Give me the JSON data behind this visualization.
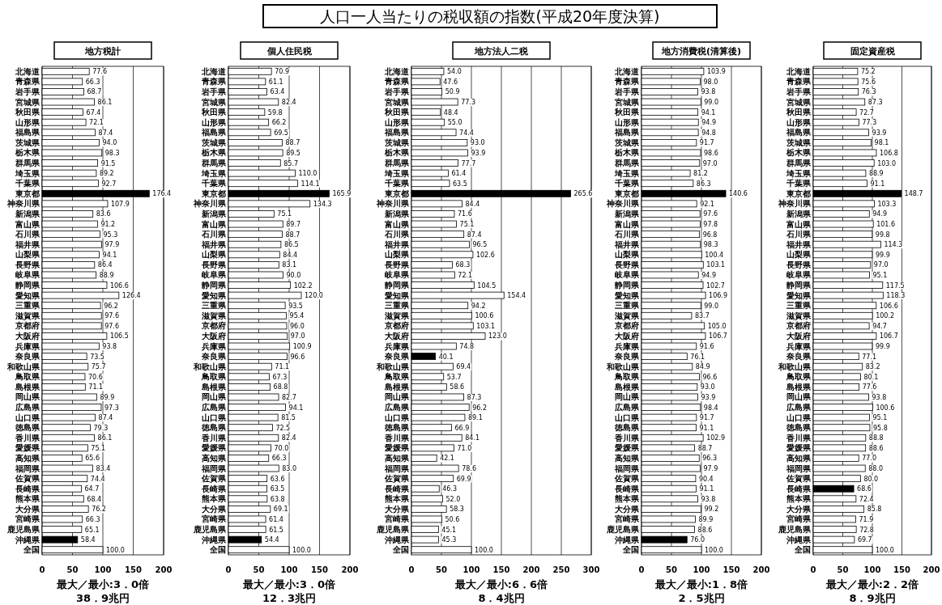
{
  "chart_data": [
    {
      "type": "other",
      "title": "人口一人当たりの税収額の指数(平成20年度決算)"
    },
    {
      "type": "bar",
      "orientation": "horizontal",
      "title": "地方税計",
      "grid": "x",
      "xlim": [
        0,
        200
      ],
      "xticks": [
        0,
        50,
        100,
        150,
        200
      ],
      "categories": [
        "北海道",
        "青森県",
        "岩手県",
        "宮城県",
        "秋田県",
        "山形県",
        "福島県",
        "茨城県",
        "栃木県",
        "群馬県",
        "埼玉県",
        "千葉県",
        "東京都",
        "神奈川県",
        "新潟県",
        "富山県",
        "石川県",
        "福井県",
        "山梨県",
        "長野県",
        "岐阜県",
        "静岡県",
        "愛知県",
        "三重県",
        "滋賀県",
        "京都府",
        "大阪府",
        "兵庫県",
        "奈良県",
        "和歌山県",
        "鳥取県",
        "島根県",
        "岡山県",
        "広島県",
        "山口県",
        "徳島県",
        "香川県",
        "愛媛県",
        "高知県",
        "福岡県",
        "佐賀県",
        "長崎県",
        "熊本県",
        "大分県",
        "宮崎県",
        "鹿児島県",
        "沖縄県",
        "全国"
      ],
      "values": [
        77.6,
        66.3,
        68.7,
        86.1,
        67.4,
        72.1,
        87.4,
        94.0,
        98.3,
        91.5,
        89.2,
        92.7,
        176.4,
        107.9,
        83.6,
        91.2,
        95.3,
        97.9,
        94.1,
        86.4,
        88.9,
        106.6,
        126.4,
        96.2,
        97.6,
        97.6,
        106.5,
        93.8,
        73.5,
        75.7,
        70.6,
        71.1,
        89.9,
        97.3,
        87.4,
        79.3,
        86.1,
        75.1,
        65.6,
        83.4,
        74.4,
        64.7,
        68.4,
        76.2,
        66.3,
        65.1,
        58.4,
        100.0
      ],
      "colors": [
        "#ffffff",
        "#ffffff",
        "#ffffff",
        "#ffffff",
        "#ffffff",
        "#ffffff",
        "#ffffff",
        "#ffffff",
        "#ffffff",
        "#ffffff",
        "#ffffff",
        "#ffffff",
        "#000000",
        "#ffffff",
        "#ffffff",
        "#ffffff",
        "#ffffff",
        "#ffffff",
        "#ffffff",
        "#ffffff",
        "#ffffff",
        "#ffffff",
        "#ffffff",
        "#ffffff",
        "#ffffff",
        "#ffffff",
        "#ffffff",
        "#ffffff",
        "#ffffff",
        "#ffffff",
        "#ffffff",
        "#ffffff",
        "#ffffff",
        "#ffffff",
        "#ffffff",
        "#ffffff",
        "#ffffff",
        "#ffffff",
        "#ffffff",
        "#ffffff",
        "#ffffff",
        "#ffffff",
        "#ffffff",
        "#ffffff",
        "#ffffff",
        "#ffffff",
        "#000000",
        "#ffffff"
      ],
      "value_labels": [
        "77.6",
        "66.3",
        "68.7",
        "86.1",
        "67.4",
        "72.1",
        "87.4",
        "94.0",
        "98.3",
        "91.5",
        "89.2",
        "92.7",
        "176.4",
        "107.9",
        "83.6",
        "91.2",
        "95.3",
        "97.9",
        "94.1",
        "86.4",
        "88.9",
        "106.6",
        "126.4",
        "96.2",
        "97.6",
        "97.6",
        "106.5",
        "93.8",
        "73.5",
        "75.7",
        "70.6",
        "71.1",
        "89.9",
        "97.3",
        "87.4",
        "79.3",
        "86.1",
        "75.1",
        "65.6",
        "83.4",
        "74.4",
        "64.7",
        "68.4",
        "76.2",
        "66.3",
        "65.1",
        "58.4",
        "100.0"
      ],
      "annotations": [
        "最大／最小:3．0倍",
        "38．9兆円"
      ]
    },
    {
      "type": "bar",
      "orientation": "horizontal",
      "title": "個人住民税",
      "grid": "x",
      "xlim": [
        0,
        200
      ],
      "xticks": [
        0,
        50,
        100,
        150,
        200
      ],
      "categories": [
        "北海道",
        "青森県",
        "岩手県",
        "宮城県",
        "秋田県",
        "山形県",
        "福島県",
        "茨城県",
        "栃木県",
        "群馬県",
        "埼玉県",
        "千葉県",
        "東京都",
        "神奈川県",
        "新潟県",
        "富山県",
        "石川県",
        "福井県",
        "山梨県",
        "長野県",
        "岐阜県",
        "静岡県",
        "愛知県",
        "三重県",
        "滋賀県",
        "京都府",
        "大阪府",
        "兵庫県",
        "奈良県",
        "和歌山県",
        "鳥取県",
        "島根県",
        "岡山県",
        "広島県",
        "山口県",
        "徳島県",
        "香川県",
        "愛媛県",
        "高知県",
        "福岡県",
        "佐賀県",
        "長崎県",
        "熊本県",
        "大分県",
        "宮崎県",
        "鹿児島県",
        "沖縄県",
        "全国"
      ],
      "values": [
        70.9,
        61.1,
        63.4,
        82.4,
        59.8,
        66.2,
        69.5,
        88.7,
        89.5,
        85.7,
        110.0,
        114.1,
        165.9,
        134.3,
        75.1,
        89.7,
        88.7,
        86.5,
        84.4,
        83.1,
        90.0,
        102.2,
        120.0,
        93.5,
        95.4,
        96.0,
        97.0,
        100.9,
        96.6,
        71.1,
        67.3,
        68.8,
        82.7,
        94.1,
        81.5,
        72.5,
        82.4,
        70.0,
        66.3,
        83.0,
        63.6,
        63.5,
        63.8,
        69.1,
        61.4,
        61.5,
        54.4,
        100.0
      ],
      "colors": [
        "#ffffff",
        "#ffffff",
        "#ffffff",
        "#ffffff",
        "#ffffff",
        "#ffffff",
        "#ffffff",
        "#ffffff",
        "#ffffff",
        "#ffffff",
        "#ffffff",
        "#ffffff",
        "#000000",
        "#ffffff",
        "#ffffff",
        "#ffffff",
        "#ffffff",
        "#ffffff",
        "#ffffff",
        "#ffffff",
        "#ffffff",
        "#ffffff",
        "#ffffff",
        "#ffffff",
        "#ffffff",
        "#ffffff",
        "#ffffff",
        "#ffffff",
        "#ffffff",
        "#ffffff",
        "#ffffff",
        "#ffffff",
        "#ffffff",
        "#ffffff",
        "#ffffff",
        "#ffffff",
        "#ffffff",
        "#ffffff",
        "#ffffff",
        "#ffffff",
        "#ffffff",
        "#ffffff",
        "#ffffff",
        "#ffffff",
        "#ffffff",
        "#ffffff",
        "#000000",
        "#ffffff"
      ],
      "value_labels": [
        "70.9",
        "61.1",
        "63.4",
        "82.4",
        "59.8",
        "66.2",
        "69.5",
        "88.7",
        "89.5",
        "85.7",
        "110.0",
        "114.1",
        "165.9",
        "134.3",
        "75.1",
        "89.7",
        "88.7",
        "86.5",
        "84.4",
        "83.1",
        "90.0",
        "102.2",
        "120.0",
        "93.5",
        "95.4",
        "96.0",
        "97.0",
        "100.9",
        "96.6",
        "71.1",
        "67.3",
        "68.8",
        "82.7",
        "94.1",
        "81.5",
        "72.5",
        "82.4",
        "70.0",
        "66.3",
        "83.0",
        "63.6",
        "63.5",
        "63.8",
        "69.1",
        "61.4",
        "61.5",
        "54.4",
        "100.0"
      ],
      "annotations": [
        "最大／最小:3．0倍",
        "12．3兆円"
      ]
    },
    {
      "type": "bar",
      "orientation": "horizontal",
      "title": "地方法人二税",
      "grid": "x",
      "xlim": [
        0,
        300
      ],
      "xticks": [
        0,
        50,
        100,
        150,
        200,
        250,
        300
      ],
      "categories": [
        "北海道",
        "青森県",
        "岩手県",
        "宮城県",
        "秋田県",
        "山形県",
        "福島県",
        "茨城県",
        "栃木県",
        "群馬県",
        "埼玉県",
        "千葉県",
        "東京都",
        "神奈川県",
        "新潟県",
        "富山県",
        "石川県",
        "福井県",
        "山梨県",
        "長野県",
        "岐阜県",
        "静岡県",
        "愛知県",
        "三重県",
        "滋賀県",
        "京都府",
        "大阪府",
        "兵庫県",
        "奈良県",
        "和歌山県",
        "鳥取県",
        "島根県",
        "岡山県",
        "広島県",
        "山口県",
        "徳島県",
        "香川県",
        "愛媛県",
        "高知県",
        "福岡県",
        "佐賀県",
        "長崎県",
        "熊本県",
        "大分県",
        "宮崎県",
        "鹿児島県",
        "沖縄県",
        "全国"
      ],
      "values": [
        54.0,
        47.6,
        50.9,
        77.3,
        48.4,
        55.0,
        74.4,
        93.0,
        93.9,
        77.7,
        61.4,
        63.5,
        265.6,
        84.4,
        71.6,
        75.1,
        87.4,
        96.5,
        102.6,
        68.3,
        72.1,
        104.5,
        154.4,
        94.2,
        100.6,
        103.1,
        123.0,
        74.8,
        40.1,
        69.4,
        53.7,
        58.6,
        87.3,
        96.2,
        89.1,
        66.9,
        84.1,
        71.0,
        42.1,
        78.6,
        69.9,
        46.3,
        52.0,
        58.3,
        50.6,
        45.1,
        45.3,
        100.0
      ],
      "colors": [
        "#ffffff",
        "#ffffff",
        "#ffffff",
        "#ffffff",
        "#ffffff",
        "#ffffff",
        "#ffffff",
        "#ffffff",
        "#ffffff",
        "#ffffff",
        "#ffffff",
        "#ffffff",
        "#000000",
        "#ffffff",
        "#ffffff",
        "#ffffff",
        "#ffffff",
        "#ffffff",
        "#ffffff",
        "#ffffff",
        "#ffffff",
        "#ffffff",
        "#ffffff",
        "#ffffff",
        "#ffffff",
        "#ffffff",
        "#ffffff",
        "#ffffff",
        "#000000",
        "#ffffff",
        "#ffffff",
        "#ffffff",
        "#ffffff",
        "#ffffff",
        "#ffffff",
        "#ffffff",
        "#ffffff",
        "#ffffff",
        "#ffffff",
        "#ffffff",
        "#ffffff",
        "#ffffff",
        "#ffffff",
        "#ffffff",
        "#ffffff",
        "#ffffff",
        "#ffffff",
        "#ffffff"
      ],
      "value_labels": [
        "54.0",
        "47.6",
        "50.9",
        "77.3",
        "48.4",
        "55.0",
        "74.4",
        "93.0",
        "93.9",
        "77.7",
        "61.4",
        "63.5",
        "265.6",
        "84.4",
        "71.6",
        "75.1",
        "87.4",
        "96.5",
        "102.6",
        "68.3",
        "72.1",
        "104.5",
        "154.4",
        "94.2",
        "100.6",
        "103.1",
        "123.0",
        "74.8",
        "40.1",
        "69.4",
        "53.7",
        "58.6",
        "87.3",
        "96.2",
        "89.1",
        "66.9",
        "84.1",
        "71.0",
        "42.1",
        "78.6",
        "69.9",
        "46.3",
        "52.0",
        "58.3",
        "50.6",
        "45.1",
        "45.3",
        "100.0"
      ],
      "annotations": [
        "最大／最小:6．6倍",
        "8．4兆円"
      ]
    },
    {
      "type": "bar",
      "orientation": "horizontal",
      "title": "地方消費税(清算後)",
      "grid": "x",
      "xlim": [
        0,
        200
      ],
      "xticks": [
        0,
        50,
        100,
        150,
        200
      ],
      "categories": [
        "北海道",
        "青森県",
        "岩手県",
        "宮城県",
        "秋田県",
        "山形県",
        "福島県",
        "茨城県",
        "栃木県",
        "群馬県",
        "埼玉県",
        "千葉県",
        "東京都",
        "神奈川県",
        "新潟県",
        "富山県",
        "石川県",
        "福井県",
        "山梨県",
        "長野県",
        "岐阜県",
        "静岡県",
        "愛知県",
        "三重県",
        "滋賀県",
        "京都府",
        "大阪府",
        "兵庫県",
        "奈良県",
        "和歌山県",
        "鳥取県",
        "島根県",
        "岡山県",
        "広島県",
        "山口県",
        "徳島県",
        "香川県",
        "愛媛県",
        "高知県",
        "福岡県",
        "佐賀県",
        "長崎県",
        "熊本県",
        "大分県",
        "宮崎県",
        "鹿児島県",
        "沖縄県",
        "全国"
      ],
      "values": [
        103.9,
        98.0,
        93.8,
        99.0,
        94.1,
        94.9,
        94.8,
        91.7,
        98.6,
        97.0,
        81.2,
        86.3,
        140.6,
        92.1,
        97.6,
        97.8,
        96.8,
        98.3,
        100.4,
        103.1,
        94.9,
        102.7,
        106.9,
        99.0,
        83.7,
        105.0,
        106.7,
        91.6,
        76.1,
        84.9,
        96.6,
        93.0,
        93.9,
        98.4,
        91.7,
        91.1,
        102.9,
        88.7,
        96.3,
        97.9,
        90.4,
        91.1,
        93.8,
        99.2,
        89.9,
        88.6,
        76.0,
        100.0
      ],
      "colors": [
        "#ffffff",
        "#ffffff",
        "#ffffff",
        "#ffffff",
        "#ffffff",
        "#ffffff",
        "#ffffff",
        "#ffffff",
        "#ffffff",
        "#ffffff",
        "#ffffff",
        "#ffffff",
        "#000000",
        "#ffffff",
        "#ffffff",
        "#ffffff",
        "#ffffff",
        "#ffffff",
        "#ffffff",
        "#ffffff",
        "#ffffff",
        "#ffffff",
        "#ffffff",
        "#ffffff",
        "#ffffff",
        "#ffffff",
        "#ffffff",
        "#ffffff",
        "#ffffff",
        "#ffffff",
        "#ffffff",
        "#ffffff",
        "#ffffff",
        "#ffffff",
        "#ffffff",
        "#ffffff",
        "#ffffff",
        "#ffffff",
        "#ffffff",
        "#ffffff",
        "#ffffff",
        "#ffffff",
        "#ffffff",
        "#ffffff",
        "#ffffff",
        "#ffffff",
        "#000000",
        "#ffffff"
      ],
      "value_labels": [
        "103.9",
        "98.0",
        "93.8",
        "99.0",
        "94.1",
        "94.9",
        "94.8",
        "91.7",
        "98.6",
        "97.0",
        "81.2",
        "86.3",
        "140.6",
        "92.1",
        "97.6",
        "97.8",
        "96.8",
        "98.3",
        "100.4",
        "103.1",
        "94.9",
        "102.7",
        "106.9",
        "99.0",
        "83.7",
        "105.0",
        "106.7",
        "91.6",
        "76.1",
        "84.9",
        "96.6",
        "93.0",
        "93.9",
        "98.4",
        "91.7",
        "91.1",
        "102.9",
        "88.7",
        "96.3",
        "97.9",
        "90.4",
        "91.1",
        "93.8",
        "99.2",
        "89.9",
        "88.6",
        "76.0",
        "100.0"
      ],
      "annotations": [
        "最大／最小:1．8倍",
        "2．5兆円"
      ]
    },
    {
      "type": "bar",
      "orientation": "horizontal",
      "title": "固定資産税",
      "grid": "x",
      "xlim": [
        0,
        200
      ],
      "xticks": [
        0,
        50,
        100,
        150,
        200
      ],
      "categories": [
        "北海道",
        "青森県",
        "岩手県",
        "宮城県",
        "秋田県",
        "山形県",
        "福島県",
        "茨城県",
        "栃木県",
        "群馬県",
        "埼玉県",
        "千葉県",
        "東京都",
        "神奈川県",
        "新潟県",
        "富山県",
        "石川県",
        "福井県",
        "山梨県",
        "長野県",
        "岐阜県",
        "静岡県",
        "愛知県",
        "三重県",
        "滋賀県",
        "京都府",
        "大阪府",
        "兵庫県",
        "奈良県",
        "和歌山県",
        "鳥取県",
        "島根県",
        "岡山県",
        "広島県",
        "山口県",
        "徳島県",
        "香川県",
        "愛媛県",
        "高知県",
        "福岡県",
        "佐賀県",
        "長崎県",
        "熊本県",
        "大分県",
        "宮崎県",
        "鹿児島県",
        "沖縄県",
        "全国"
      ],
      "values": [
        75.2,
        75.6,
        76.3,
        87.3,
        72.7,
        77.3,
        93.9,
        98.1,
        106.8,
        103.0,
        88.9,
        91.1,
        148.7,
        103.3,
        94.9,
        101.6,
        99.8,
        114.3,
        99.9,
        97.0,
        95.1,
        117.5,
        118.3,
        106.6,
        100.2,
        94.7,
        106.7,
        99.9,
        77.1,
        83.2,
        80.1,
        77.6,
        93.8,
        100.6,
        95.1,
        95.8,
        88.8,
        88.6,
        77.0,
        88.0,
        80.0,
        68.6,
        72.4,
        85.8,
        71.9,
        72.8,
        69.7,
        100.0
      ],
      "colors": [
        "#ffffff",
        "#ffffff",
        "#ffffff",
        "#ffffff",
        "#ffffff",
        "#ffffff",
        "#ffffff",
        "#ffffff",
        "#ffffff",
        "#ffffff",
        "#ffffff",
        "#ffffff",
        "#000000",
        "#ffffff",
        "#ffffff",
        "#ffffff",
        "#ffffff",
        "#ffffff",
        "#ffffff",
        "#ffffff",
        "#ffffff",
        "#ffffff",
        "#ffffff",
        "#ffffff",
        "#ffffff",
        "#ffffff",
        "#ffffff",
        "#ffffff",
        "#ffffff",
        "#ffffff",
        "#ffffff",
        "#ffffff",
        "#ffffff",
        "#ffffff",
        "#ffffff",
        "#ffffff",
        "#ffffff",
        "#ffffff",
        "#ffffff",
        "#ffffff",
        "#ffffff",
        "#000000",
        "#ffffff",
        "#ffffff",
        "#ffffff",
        "#ffffff",
        "#ffffff",
        "#ffffff"
      ],
      "value_labels": [
        "75.2",
        "75.6",
        "76.3",
        "87.3",
        "72.7",
        "77.3",
        "93.9",
        "98.1",
        "106.8",
        "103.0",
        "88.9",
        "91.1",
        "148.7",
        "103.3",
        "94.9",
        "101.6",
        "99.8",
        "114.3",
        "99.9",
        "97.0",
        "95.1",
        "117.5",
        "118.3",
        "106.6",
        "100.2",
        "94.7",
        "106.7",
        "99.9",
        "77.1",
        "83.2",
        "80.1",
        "77.6",
        "93.8",
        "100.6",
        "95.1",
        "95.8",
        "88.8",
        "88.6",
        "77.0",
        "88.0",
        "80.0",
        "68.6",
        "72.4",
        "85.8",
        "71.9",
        "72.8",
        "69.7",
        "100.0"
      ],
      "annotations": [
        "最大／最小:2．2倍",
        "8．9兆円"
      ]
    }
  ]
}
